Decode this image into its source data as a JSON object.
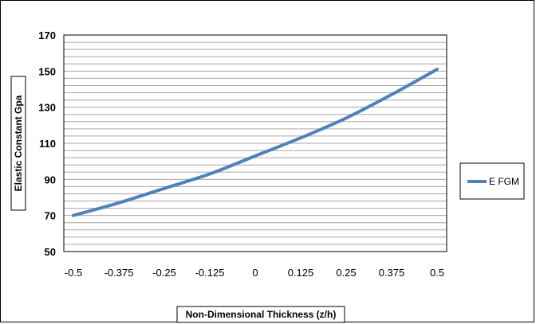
{
  "chart_data": {
    "type": "line",
    "title": "",
    "xlabel": "Non-Dimensional Thickness (z/h)",
    "ylabel": "Elastic Constant Gpa",
    "x_tick_labels": [
      "-0.5",
      "-0.375",
      "-0.25",
      "-0.125",
      "0",
      "0.125",
      "0.25",
      "0.375",
      "0.5"
    ],
    "y_tick_labels": [
      "50",
      "70",
      "90",
      "110",
      "130",
      "150",
      "170"
    ],
    "xlim": [
      -0.5,
      0.5
    ],
    "ylim": [
      50,
      170
    ],
    "grid": true,
    "grid_lines": "horizontal",
    "legend_position": "right",
    "series": [
      {
        "name": "E FGM",
        "color": "#4F81BD",
        "x": [
          -0.5,
          -0.375,
          -0.25,
          -0.125,
          0,
          0.125,
          0.25,
          0.375,
          0.5
        ],
        "y": [
          70,
          77,
          85,
          93,
          103,
          113,
          124,
          137,
          151
        ]
      }
    ]
  }
}
